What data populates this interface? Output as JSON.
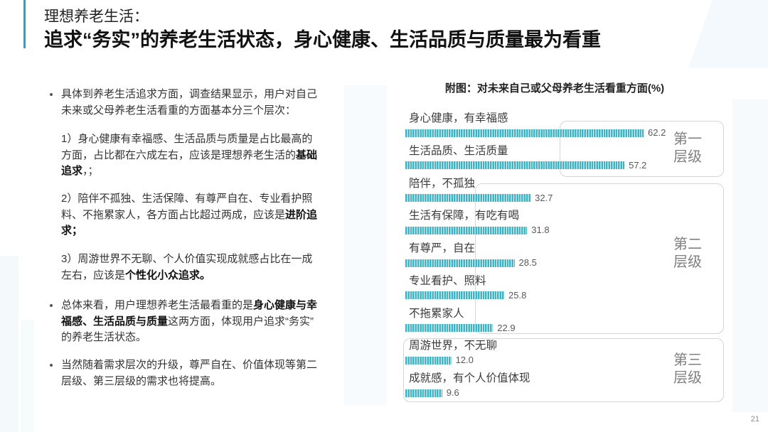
{
  "header": {
    "title": "理想养老生活：",
    "subtitle": "追求“务实”的养老生活状态，身心健康、生活品质与质量最为看重"
  },
  "body": {
    "paragraphs": [
      {
        "lines": [
          [
            "具体到养老生活追求方面，调查结果显示，用户对自己"
          ],
          [
            "未来或父母养老生活看重的方面基本分三个层次："
          ]
        ]
      },
      {
        "lines": [
          [
            "1）身心健康有幸福感、生活品质与质量是占比最高的"
          ],
          [
            "方面，占比都在六成左右，应该是理想养老生活的",
            "基础"
          ],
          [
            "追求",
            "，；"
          ]
        ]
      },
      {
        "lines": [
          [
            "2）陪伴不孤独、生活保障、有尊严自在、专业看护照"
          ],
          [
            "料、不拖累家人，各方面占比超过两成，应该是",
            "进阶追"
          ],
          [
            "求；"
          ]
        ]
      },
      {
        "lines": [
          [
            "3）周游世界不无聊、个人价值实现成就感占比在一成"
          ],
          [
            "左右，应该是",
            "个性化小众追求。"
          ]
        ]
      },
      {
        "lines": [
          [
            "总体来看，用户理想养老生活最看重的是",
            "身心健康与幸"
          ],
          [
            "福感、生活品质与质量",
            "这两方面，体现用户追求“务实”"
          ],
          [
            "的养老生活状态。"
          ]
        ]
      },
      {
        "lines": [
          [
            "当然随着需求层次的升级，尊严自在、价值体现等第二"
          ],
          [
            "层级、第三层级的需求也将提高。"
          ]
        ]
      }
    ]
  },
  "chart_data": {
    "type": "bar",
    "orientation": "horizontal",
    "title": "附图：对未来自己或父母养老生活看重方面(%)",
    "xlabel": "",
    "ylabel": "",
    "categories": [
      "身心健康，有幸福感",
      "生活品质、生活质量",
      "陪伴，不孤独",
      "生活有保障，有吃有喝",
      "有尊严，自在",
      "专业看护、照料",
      "不拖累家人",
      "周游世界，不无聊",
      "成就感，有个人价值体现"
    ],
    "values": [
      62.2,
      57.2,
      32.7,
      31.8,
      28.5,
      25.8,
      22.9,
      12.0,
      9.6
    ],
    "data_labels": [
      "62.2",
      "57.2",
      "32.7",
      "31.8",
      "28.5",
      "25.8",
      "22.9",
      "12.0",
      "9.6"
    ],
    "xlim": [
      0,
      70
    ],
    "grid": false,
    "legend": "none",
    "bar_color": "#36b6c8",
    "groups": [
      {
        "label_lines": [
          "第一",
          "层级"
        ],
        "row_range": [
          0,
          1
        ]
      },
      {
        "label_lines": [
          "第二",
          "层级"
        ],
        "row_range": [
          2,
          6
        ]
      },
      {
        "label_lines": [
          "第三",
          "层级"
        ],
        "row_range": [
          7,
          8
        ]
      }
    ]
  },
  "footer": {
    "page_number": "21"
  },
  "theme": {
    "accent": "#19a9d7",
    "text": "#333333",
    "text_strong": "#111111",
    "muted": "#7f7f7f",
    "box_border": "#d6d6d6",
    "data_label": "#595959"
  }
}
